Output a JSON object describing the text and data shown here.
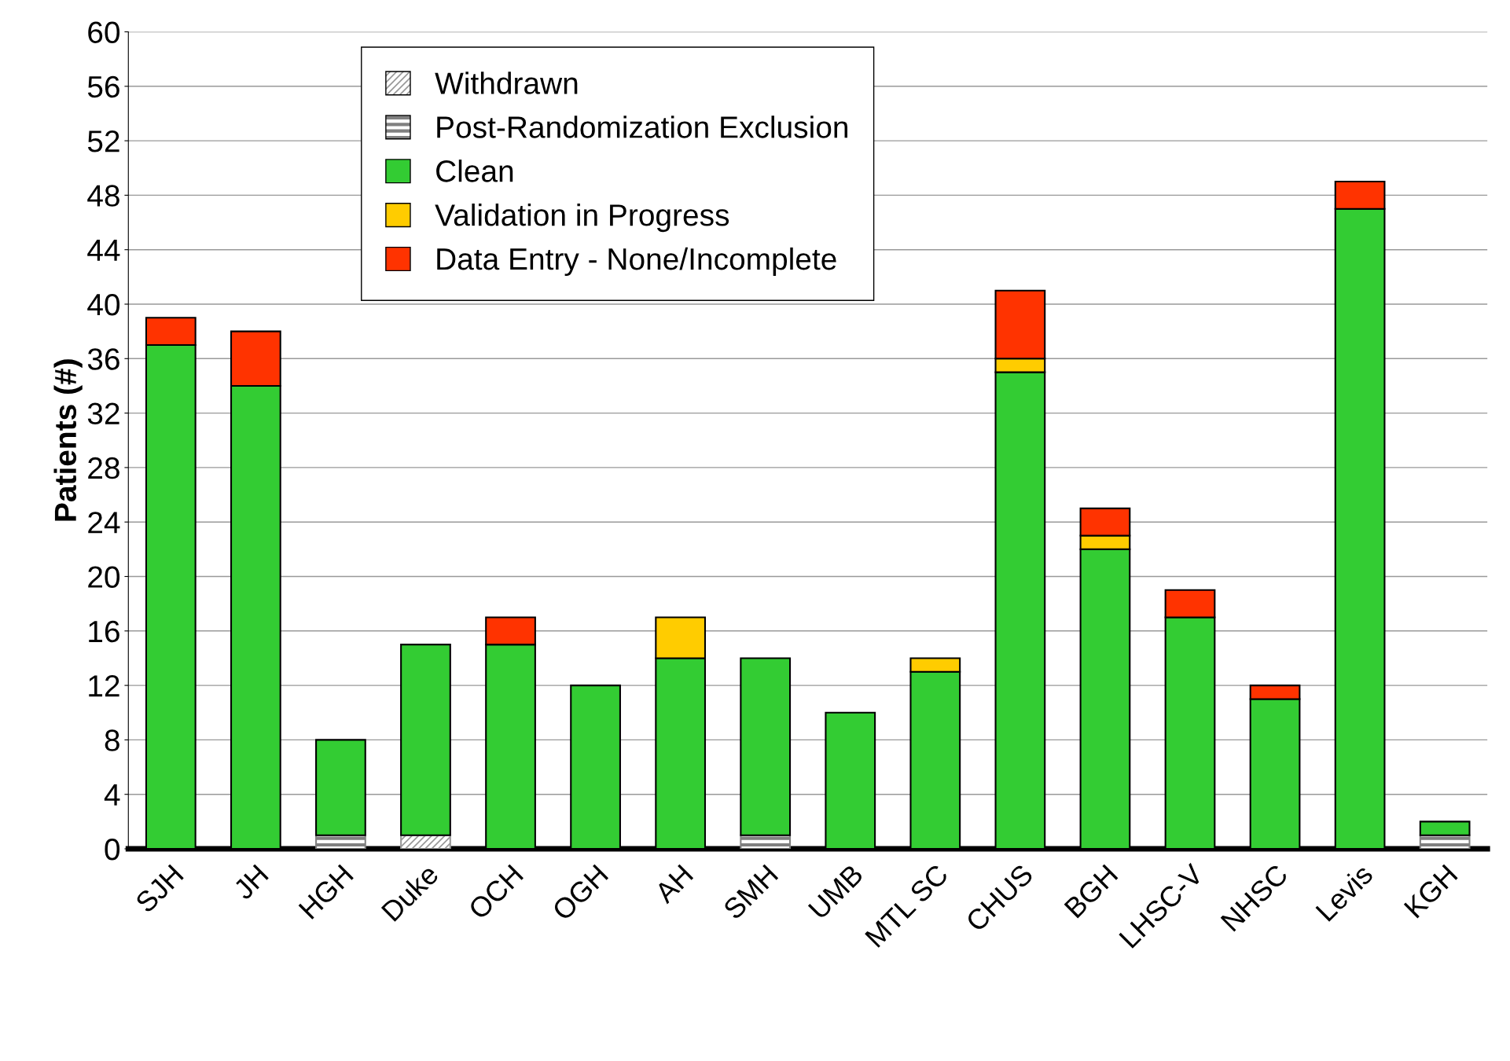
{
  "chart_data": {
    "type": "bar",
    "stacked": true,
    "ylabel": "Patients (#)",
    "categories": [
      "SJH",
      "JH",
      "HGH",
      "Duke",
      "OCH",
      "OGH",
      "AH",
      "SMH",
      "UMB",
      "MTL SC",
      "CHUS",
      "BGH",
      "LHSC-V",
      "NHSC",
      "Levis",
      "KGH"
    ],
    "series": [
      {
        "name": "Withdrawn",
        "color": "#999999",
        "values": [
          0,
          0,
          0,
          1,
          0,
          0,
          0,
          0,
          0,
          0,
          0,
          0,
          0,
          0,
          0,
          0
        ]
      },
      {
        "name": "Post-Randomization Exclusion",
        "color": "#808080",
        "values": [
          0,
          0,
          1,
          0,
          0,
          0,
          0,
          1,
          0,
          0,
          0,
          0,
          0,
          0,
          0,
          1
        ]
      },
      {
        "name": "Clean",
        "color": "#33cc33",
        "values": [
          37,
          34,
          7,
          14,
          15,
          12,
          14,
          13,
          10,
          13,
          35,
          22,
          17,
          11,
          47,
          1
        ]
      },
      {
        "name": "Validation in Progress",
        "color": "#ffcc00",
        "values": [
          0,
          0,
          0,
          0,
          0,
          0,
          3,
          0,
          0,
          1,
          1,
          1,
          0,
          0,
          0,
          0
        ]
      },
      {
        "name": "Data Entry - None/Incomplete",
        "color": "#ff3300",
        "values": [
          2,
          4,
          0,
          0,
          2,
          0,
          0,
          0,
          0,
          0,
          5,
          2,
          2,
          1,
          2,
          0
        ]
      }
    ],
    "ylim": [
      0,
      60
    ],
    "yticks": [
      0,
      4,
      8,
      12,
      16,
      20,
      24,
      28,
      32,
      36,
      40,
      44,
      48,
      52,
      56,
      60
    ],
    "grid": "y",
    "legend": "top"
  }
}
